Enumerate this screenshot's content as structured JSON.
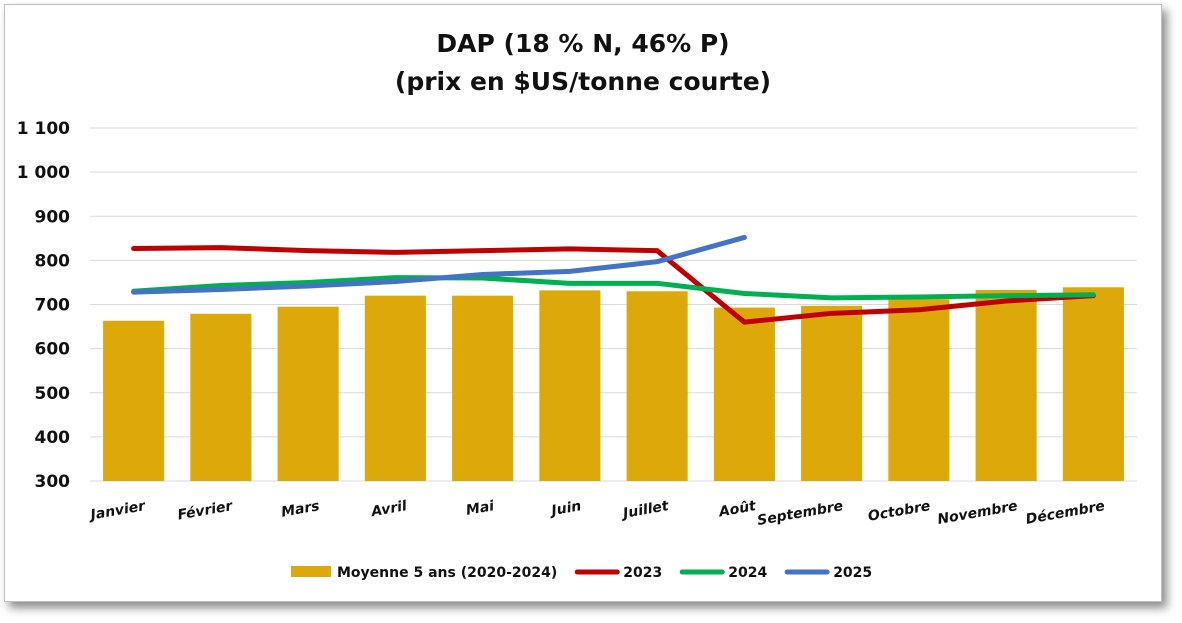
{
  "chart_data": {
    "type": "bar",
    "title": [
      "DAP (18 % N, 46% P)",
      "(prix en $US/tonne courte)"
    ],
    "categories": [
      "Janvier",
      "Février",
      "Mars",
      "Avril",
      "Mai",
      "Juin",
      "Juillet",
      "Août",
      "Septembre",
      "Octobre",
      "Novembre",
      "Décembre"
    ],
    "y_tick_labels": [
      "300",
      "400",
      "500",
      "600",
      "700",
      "800",
      "900",
      "1 000",
      "1 100"
    ],
    "ylim": [
      300,
      1100
    ],
    "grid": true,
    "legend_position": "bottom",
    "series": [
      {
        "name": "Moyenne 5 ans (2020-2024)",
        "kind": "bar",
        "color": "#DDA90A",
        "values": [
          663,
          679,
          695,
          720,
          720,
          732,
          730,
          693,
          697,
          712,
          733,
          739
        ]
      },
      {
        "name": "2023",
        "kind": "line",
        "color": "#C00000",
        "values": [
          827,
          829,
          822,
          818,
          822,
          826,
          822,
          660,
          680,
          688,
          708,
          720
        ]
      },
      {
        "name": "2024",
        "kind": "line",
        "color": "#00B050",
        "values": [
          730,
          743,
          750,
          761,
          760,
          748,
          748,
          725,
          715,
          717,
          720,
          722
        ]
      },
      {
        "name": "2025",
        "kind": "line",
        "color": "#4472C4",
        "values": [
          728,
          734,
          742,
          752,
          768,
          775,
          797,
          852,
          null,
          null,
          null,
          null
        ]
      }
    ]
  }
}
